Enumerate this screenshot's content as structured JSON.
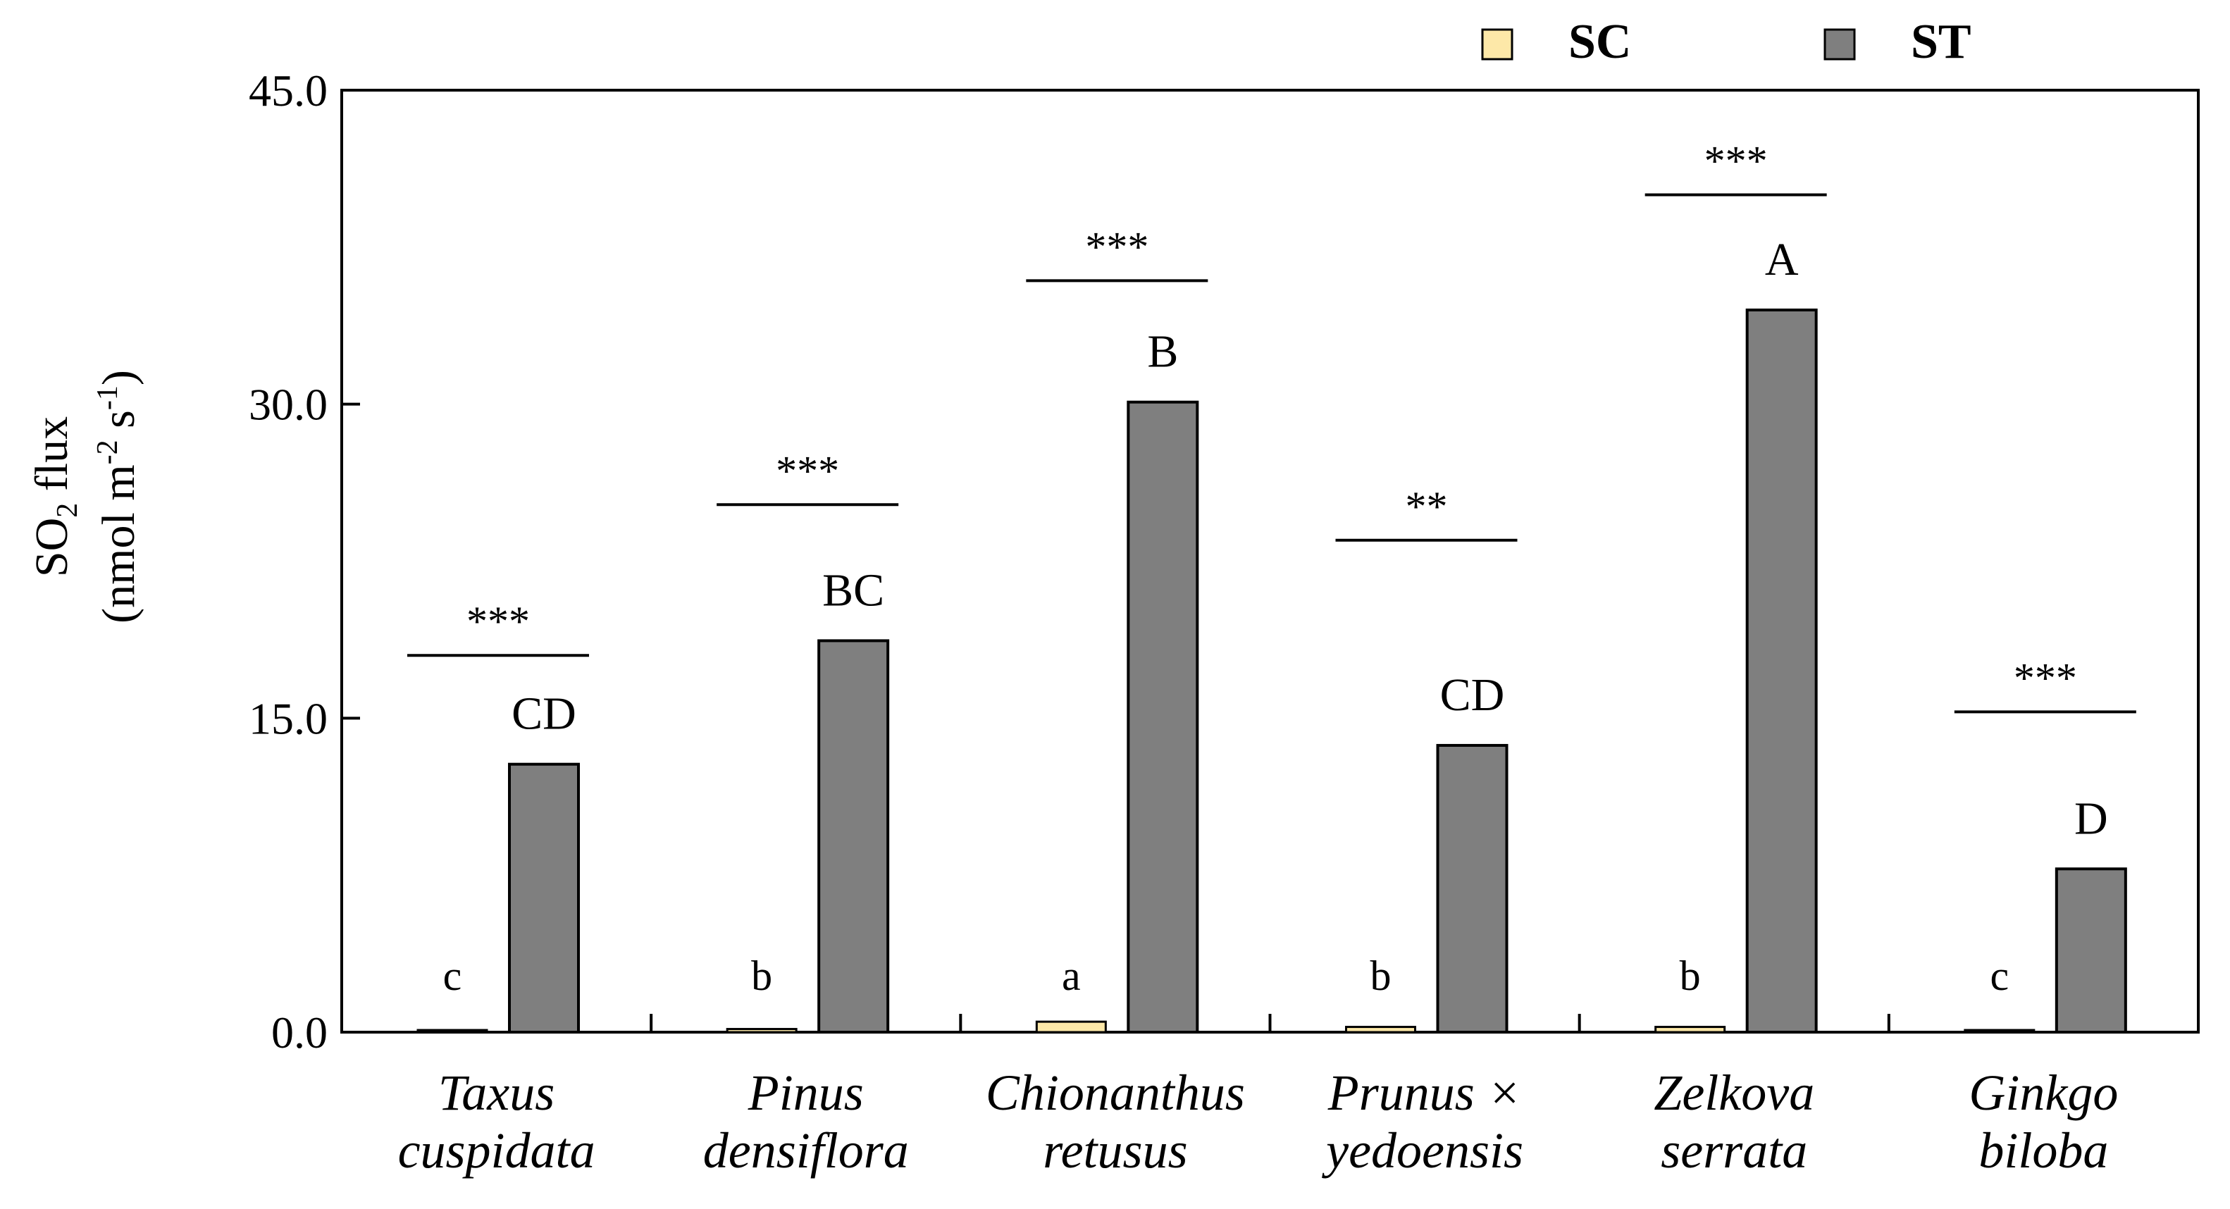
{
  "chart_data": {
    "type": "bar",
    "title": "",
    "ylabel_main": "SO",
    "ylabel_sub": "2",
    "ylabel_rest": " flux",
    "yunit_open": "(nmol m",
    "yunit_sup1": "-2",
    "yunit_mid": " s",
    "yunit_sup2": "-1",
    "yunit_close": ")",
    "ylim": [
      0,
      45
    ],
    "yticks": [
      {
        "value": 0,
        "label": "0.0"
      },
      {
        "value": 15,
        "label": "15.0"
      },
      {
        "value": 30,
        "label": "30.0"
      },
      {
        "value": 45,
        "label": "45.0"
      }
    ],
    "categories": [
      {
        "line1": "Taxus",
        "line2": "cuspidata"
      },
      {
        "line1": "Pinus",
        "line2": "densiflora"
      },
      {
        "line1": "Chionanthus",
        "line2": "retusus"
      },
      {
        "line1": "Prunus ×",
        "line2": "yedoensis"
      },
      {
        "line1": "Zelkova",
        "line2": "serrata"
      },
      {
        "line1": "Ginkgo",
        "line2": "biloba"
      }
    ],
    "series": [
      {
        "name": "SC",
        "color": "#fde8a8",
        "values": [
          0.1,
          0.15,
          0.5,
          0.25,
          0.25,
          0.1
        ],
        "letters": [
          "c",
          "b",
          "a",
          "b",
          "b",
          "c"
        ]
      },
      {
        "name": "ST",
        "color": "#7f7f7f",
        "values": [
          12.8,
          18.7,
          30.1,
          13.7,
          34.5,
          7.8
        ],
        "letters": [
          "CD",
          "BC",
          "B",
          "CD",
          "A",
          "D"
        ]
      }
    ],
    "significance": [
      {
        "label": "***",
        "level": 18.0
      },
      {
        "label": "***",
        "level": 25.2
      },
      {
        "label": "***",
        "level": 35.9
      },
      {
        "label": "**",
        "level": 23.5
      },
      {
        "label": "***",
        "level": 40.0
      },
      {
        "label": "***",
        "level": 15.3
      }
    ],
    "legend_position": "top-right"
  }
}
